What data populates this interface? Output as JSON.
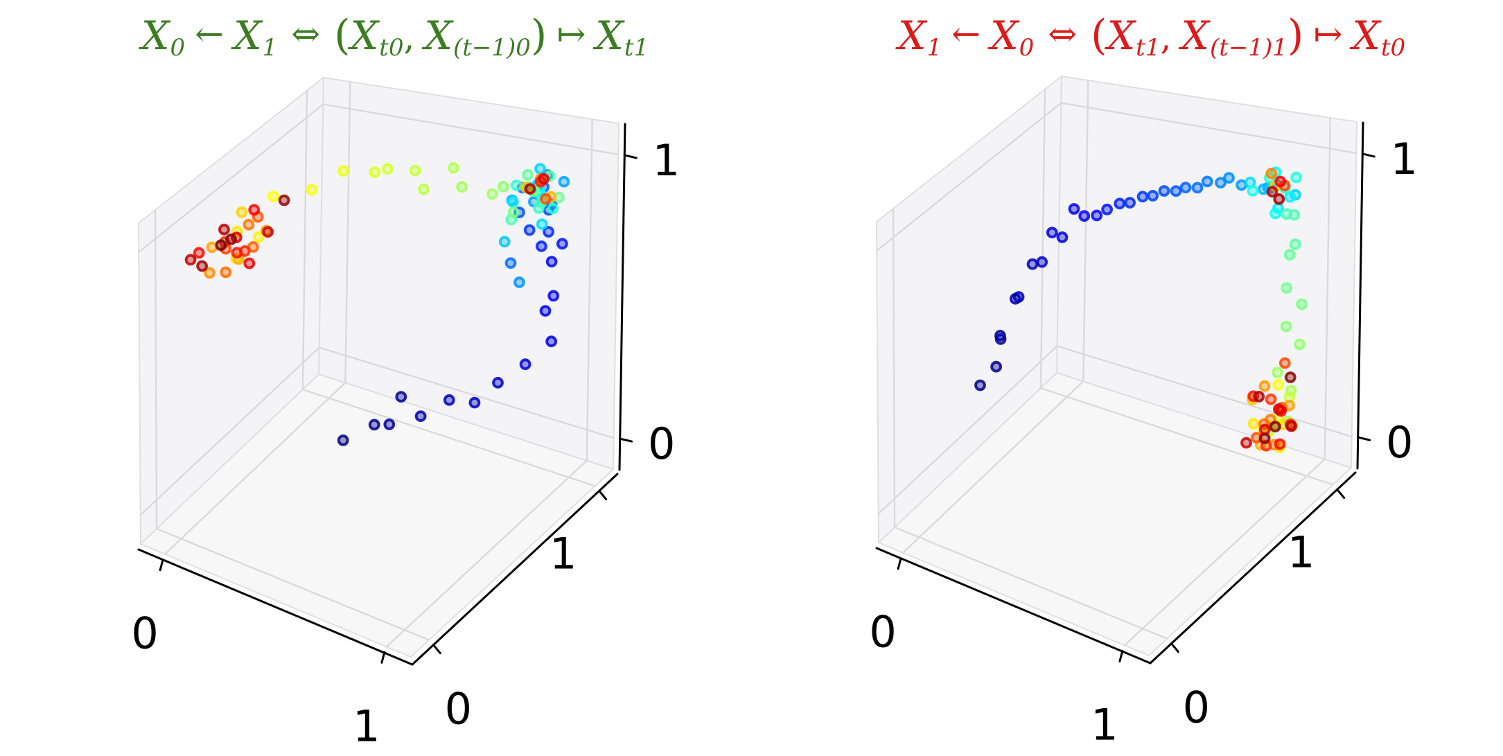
{
  "page": {
    "background": "#ffffff"
  },
  "titles": {
    "left": {
      "plain": "X0 ← X1 ⇔ (Xt0, X(t−1)0) ↦ Xt1",
      "color": "#3c7d21",
      "segments": [
        {
          "type": "var",
          "text": "X",
          "sub": "0"
        },
        {
          "type": "op",
          "text": "←"
        },
        {
          "type": "var",
          "text": "X",
          "sub": "1"
        },
        {
          "type": "op2",
          "text": "⇔"
        },
        {
          "type": "paren",
          "text": "("
        },
        {
          "type": "var",
          "text": "X",
          "sub": "t0"
        },
        {
          "type": "comma",
          "text": ","
        },
        {
          "type": "var",
          "text": "X",
          "sub": "(t−1)0"
        },
        {
          "type": "paren",
          "text": ")"
        },
        {
          "type": "op",
          "text": "↦"
        },
        {
          "type": "var",
          "text": "X",
          "sub": "t1"
        }
      ]
    },
    "right": {
      "plain": "X1 ← X0 ⇔ (Xt1, X(t−1)1) ↦ Xt0",
      "color": "#dc1a1a",
      "segments": [
        {
          "type": "var",
          "text": "X",
          "sub": "1"
        },
        {
          "type": "op",
          "text": "←"
        },
        {
          "type": "var",
          "text": "X",
          "sub": "0"
        },
        {
          "type": "op2",
          "text": "⇔"
        },
        {
          "type": "paren",
          "text": "("
        },
        {
          "type": "var",
          "text": "X",
          "sub": "t1"
        },
        {
          "type": "comma",
          "text": ","
        },
        {
          "type": "var",
          "text": "X",
          "sub": "(t−1)1"
        },
        {
          "type": "paren",
          "text": ")"
        },
        {
          "type": "op",
          "text": "↦"
        },
        {
          "type": "var",
          "text": "X",
          "sub": "t0"
        }
      ]
    }
  },
  "axes": {
    "x_ticks": [
      "0",
      "1"
    ],
    "y_ticks": [
      "0",
      "1"
    ],
    "z_ticks": [
      "0",
      "1"
    ],
    "tick_values": [
      0,
      1
    ],
    "range": [
      0,
      1
    ],
    "grid": true,
    "pane_color": "#f4f4f6",
    "floor_color": "#f7f7f8",
    "grid_color": "#dadada",
    "axis_color": "#000000"
  },
  "chart_data": [
    {
      "type": "scatter",
      "projection": "3d",
      "panel": "left",
      "title": "X0 ← X1 ⇔ (Xt0, X(t−1)0) ↦ Xt1",
      "title_color": "#3c7d21",
      "xlim": [
        0,
        1
      ],
      "ylim": [
        0,
        1
      ],
      "zlim": [
        0,
        1
      ],
      "colormap": "jet",
      "color_encodes": "time index along trajectory (dark blue = first, dark red = last)",
      "n_points": 92,
      "pattern": "trajectory rises from floor to corner cluster near (1,1,1); mid-time green transition across top toward left wall; late times alternate between left-wall cluster near (0, 0–0.45, 0.9) and the (1,1,1) corner cluster",
      "points": [
        [
          0.3,
          0.62,
          0.03
        ],
        [
          0.38,
          0.7,
          0.07
        ],
        [
          0.47,
          0.66,
          0.12
        ],
        [
          0.44,
          0.78,
          0.15
        ],
        [
          0.55,
          0.74,
          0.13
        ],
        [
          0.63,
          0.8,
          0.18
        ],
        [
          0.71,
          0.84,
          0.17
        ],
        [
          0.78,
          0.88,
          0.24
        ],
        [
          0.86,
          0.93,
          0.3
        ],
        [
          0.94,
          0.97,
          0.38
        ],
        [
          0.9,
          0.99,
          0.47
        ],
        [
          0.96,
          0.95,
          0.56
        ],
        [
          0.93,
          0.98,
          0.66
        ],
        [
          0.98,
          0.97,
          0.74
        ],
        [
          0.88,
          0.99,
          0.7
        ],
        [
          0.95,
          0.93,
          0.8
        ],
        [
          0.85,
          0.96,
          0.77
        ],
        [
          0.92,
          0.99,
          0.86
        ],
        [
          0.97,
          0.9,
          0.9
        ],
        [
          0.82,
          0.94,
          0.84
        ],
        [
          0.9,
          0.97,
          0.93
        ],
        [
          0.76,
          0.98,
          0.62
        ],
        [
          0.86,
          0.9,
          0.96
        ],
        [
          0.93,
          0.95,
          0.99
        ],
        [
          0.79,
          0.99,
          0.55
        ],
        [
          0.88,
          0.94,
          0.89
        ],
        [
          0.97,
          0.99,
          0.95
        ],
        [
          0.83,
          0.88,
          0.92
        ],
        [
          0.91,
          0.92,
          0.97
        ],
        [
          0.74,
          0.97,
          0.7
        ],
        [
          0.87,
          0.99,
          0.98
        ],
        [
          0.95,
          0.89,
          0.85
        ],
        [
          0.8,
          0.93,
          0.88
        ],
        [
          0.89,
          0.96,
          0.92
        ],
        [
          0.93,
          0.91,
          0.94
        ],
        [
          0.85,
          0.98,
          0.9
        ],
        [
          0.9,
          0.88,
          0.98
        ],
        [
          0.96,
          0.94,
          0.88
        ],
        [
          0.82,
          0.92,
          0.95
        ],
        [
          0.88,
          0.97,
          0.85
        ],
        [
          0.94,
          0.9,
          0.92
        ],
        [
          0.78,
          0.95,
          0.8
        ],
        [
          0.91,
          0.99,
          0.96
        ],
        [
          0.86,
          0.93,
          0.99
        ],
        [
          0.97,
          0.96,
          0.91
        ],
        [
          0.83,
          0.89,
          0.87
        ],
        [
          0.88,
          0.94,
          0.93
        ],
        [
          0.8,
          0.87,
          0.97
        ],
        [
          0.72,
          0.92,
          0.9
        ],
        [
          0.64,
          0.85,
          0.95
        ],
        [
          0.57,
          0.9,
          0.98
        ],
        [
          0.5,
          0.82,
          0.93
        ],
        [
          0.43,
          0.87,
          0.96
        ],
        [
          0.36,
          0.8,
          0.99
        ],
        [
          0.28,
          0.84,
          0.94
        ],
        [
          0.2,
          0.76,
          0.97
        ],
        [
          0.12,
          0.68,
          0.92
        ],
        [
          0.06,
          0.52,
          0.96
        ],
        [
          0.09,
          0.38,
          0.88
        ],
        [
          0.05,
          0.3,
          0.93
        ],
        [
          0.1,
          0.22,
          0.88
        ],
        [
          0.03,
          0.36,
          0.97
        ],
        [
          0.86,
          0.92,
          0.95
        ],
        [
          0.93,
          0.97,
          0.9
        ],
        [
          0.07,
          0.28,
          0.84
        ],
        [
          0.02,
          0.18,
          0.92
        ],
        [
          0.11,
          0.4,
          0.9
        ],
        [
          0.05,
          0.12,
          0.86
        ],
        [
          0.9,
          0.95,
          0.97
        ],
        [
          0.08,
          0.33,
          0.95
        ],
        [
          0.04,
          0.24,
          0.8
        ],
        [
          0.12,
          0.3,
          0.89
        ],
        [
          0.06,
          0.42,
          0.93
        ],
        [
          0.95,
          0.91,
          0.93
        ],
        [
          0.02,
          0.27,
          0.87
        ],
        [
          0.09,
          0.16,
          0.97
        ],
        [
          0.05,
          0.35,
          0.83
        ],
        [
          0.88,
          0.98,
          0.94
        ],
        [
          0.11,
          0.21,
          0.91
        ],
        [
          0.03,
          0.08,
          0.95
        ],
        [
          0.07,
          0.38,
          0.98
        ],
        [
          0.13,
          0.26,
          0.85
        ],
        [
          0.92,
          0.94,
          0.98
        ],
        [
          0.04,
          0.31,
          0.9
        ],
        [
          0.09,
          0.44,
          0.87
        ],
        [
          0.02,
          0.04,
          0.94
        ],
        [
          0.06,
          0.2,
          0.99
        ],
        [
          0.85,
          0.96,
          0.92
        ],
        [
          0.03,
          0.1,
          0.89
        ],
        [
          0.12,
          0.5,
          0.97
        ],
        [
          0.05,
          0.26,
          0.92
        ],
        [
          0.08,
          0.15,
          0.96
        ]
      ]
    },
    {
      "type": "scatter",
      "projection": "3d",
      "panel": "right",
      "title": "X1 ← X0 ⇔ (Xt1, X(t−1)1) ↦ Xt0",
      "title_color": "#dc1a1a",
      "xlim": [
        0,
        1
      ],
      "ylim": [
        0,
        1
      ],
      "zlim": [
        0,
        1
      ],
      "colormap": "jet",
      "color_encodes": "time index along trajectory (dark blue = first, dark red = last)",
      "n_points": 92,
      "pattern": "early blue arc climbs from mid-left wall to corner cluster near (1,1,1); green mid-times descend the right wall; late times alternate between bottom-right cluster near (0.9,0.9,0.1) and the (1,1,1) corner cluster",
      "points": [
        [
          0.02,
          0.38,
          0.28
        ],
        [
          0.05,
          0.44,
          0.33
        ],
        [
          0.03,
          0.5,
          0.4
        ],
        [
          0.08,
          0.42,
          0.47
        ],
        [
          0.06,
          0.55,
          0.54
        ],
        [
          0.12,
          0.48,
          0.6
        ],
        [
          0.1,
          0.6,
          0.66
        ],
        [
          0.18,
          0.54,
          0.72
        ],
        [
          0.15,
          0.65,
          0.77
        ],
        [
          0.24,
          0.58,
          0.81
        ],
        [
          0.21,
          0.7,
          0.85
        ],
        [
          0.3,
          0.63,
          0.88
        ],
        [
          0.28,
          0.74,
          0.82
        ],
        [
          0.37,
          0.67,
          0.9
        ],
        [
          0.35,
          0.78,
          0.86
        ],
        [
          0.44,
          0.71,
          0.92
        ],
        [
          0.42,
          0.82,
          0.88
        ],
        [
          0.51,
          0.75,
          0.94
        ],
        [
          0.49,
          0.85,
          0.9
        ],
        [
          0.58,
          0.79,
          0.95
        ],
        [
          0.56,
          0.88,
          0.91
        ],
        [
          0.65,
          0.82,
          0.96
        ],
        [
          0.63,
          0.91,
          0.93
        ],
        [
          0.72,
          0.86,
          0.97
        ],
        [
          0.7,
          0.94,
          0.94
        ],
        [
          0.78,
          0.9,
          0.95
        ],
        [
          0.85,
          0.96,
          0.92
        ],
        [
          0.92,
          0.91,
          0.97
        ],
        [
          0.81,
          0.99,
          0.89
        ],
        [
          0.88,
          0.93,
          0.94
        ],
        [
          0.95,
          0.98,
          0.9
        ],
        [
          0.83,
          0.88,
          0.98
        ],
        [
          0.9,
          0.95,
          0.86
        ],
        [
          0.97,
          0.92,
          0.93
        ],
        [
          0.86,
          0.99,
          0.96
        ],
        [
          0.93,
          0.89,
          0.88
        ],
        [
          0.8,
          0.94,
          0.91
        ],
        [
          0.96,
          0.97,
          0.97
        ],
        [
          0.89,
          0.91,
          0.99
        ],
        [
          0.92,
          0.96,
          0.93
        ],
        [
          0.97,
          0.9,
          0.88
        ],
        [
          0.94,
          0.99,
          0.82
        ],
        [
          0.98,
          0.94,
          0.75
        ],
        [
          0.93,
          0.98,
          0.68
        ],
        [
          0.96,
          0.92,
          0.6
        ],
        [
          0.99,
          0.97,
          0.52
        ],
        [
          0.94,
          0.95,
          0.44
        ],
        [
          0.97,
          0.99,
          0.36
        ],
        [
          0.92,
          0.93,
          0.28
        ],
        [
          0.95,
          0.97,
          0.2
        ],
        [
          0.98,
          0.91,
          0.13
        ],
        [
          0.9,
          0.96,
          0.07
        ],
        [
          0.93,
          0.99,
          0.16
        ],
        [
          0.88,
          0.94,
          0.05
        ],
        [
          0.91,
          0.9,
          0.1
        ],
        [
          0.85,
          0.95,
          0.04
        ],
        [
          0.96,
          0.88,
          0.15
        ],
        [
          0.89,
          0.98,
          0.2
        ],
        [
          0.94,
          0.92,
          0.02
        ],
        [
          0.87,
          0.86,
          0.12
        ],
        [
          0.92,
          0.97,
          0.07
        ],
        [
          0.9,
          0.93,
          0.95
        ],
        [
          0.83,
          0.91,
          0.17
        ],
        [
          0.97,
          0.95,
          0.09
        ],
        [
          0.88,
          0.89,
          0.03
        ],
        [
          0.93,
          0.99,
          0.13
        ],
        [
          0.86,
          0.94,
          0.21
        ],
        [
          0.95,
          0.87,
          0.06
        ],
        [
          0.87,
          0.95,
          0.98
        ],
        [
          0.9,
          0.92,
          0.11
        ],
        [
          0.84,
          0.97,
          0.05
        ],
        [
          0.96,
          0.9,
          0.18
        ],
        [
          0.89,
          0.85,
          0.08
        ],
        [
          0.93,
          0.96,
          0.3
        ],
        [
          0.94,
          0.93,
          0.96
        ],
        [
          0.86,
          0.98,
          0.14
        ],
        [
          0.91,
          0.88,
          0.04
        ],
        [
          0.97,
          0.94,
          0.1
        ],
        [
          0.84,
          0.9,
          0.19
        ],
        [
          0.92,
          0.95,
          0.01
        ],
        [
          0.88,
          0.99,
          0.93
        ],
        [
          0.95,
          0.91,
          0.16
        ],
        [
          0.87,
          0.93,
          0.06
        ],
        [
          0.9,
          0.97,
          0.12
        ],
        [
          0.82,
          0.89,
          0.02
        ],
        [
          0.93,
          0.87,
          0.97
        ],
        [
          0.96,
          0.96,
          0.08
        ],
        [
          0.85,
          0.92,
          0.18
        ],
        [
          0.91,
          0.94,
          0.9
        ],
        [
          0.89,
          0.9,
          0.05
        ],
        [
          0.94,
          0.98,
          0.24
        ],
        [
          0.92,
          0.92,
          0.09
        ]
      ]
    }
  ]
}
